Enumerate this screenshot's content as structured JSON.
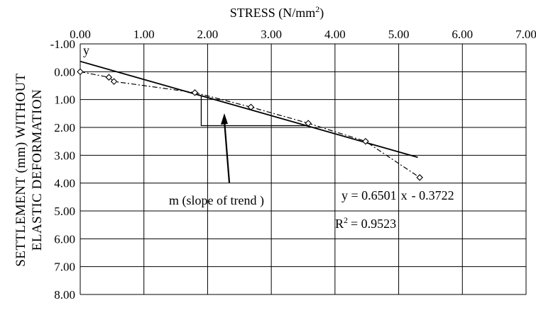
{
  "chart_data": {
    "type": "scatter",
    "title_prefix": "STRESS (N/mm",
    "title_sup": "2",
    "title_suffix": ")",
    "ylabel_line1": "SETTLEMENT (mm) WITHOUT",
    "ylabel_line2": "ELASTIC DEFORMATION",
    "y_axis_marker": "y",
    "x_ticks": [
      "0.00",
      "1.00",
      "2.00",
      "3.00",
      "4.00",
      "5.00",
      "6.00",
      "7.00"
    ],
    "y_ticks": [
      "-1.00",
      "0.00",
      "1.00",
      "2.00",
      "3.00",
      "4.00",
      "5.00",
      "6.00",
      "7.00",
      "8.00"
    ],
    "xlim": [
      0,
      7
    ],
    "ylim": [
      -1,
      8
    ],
    "y_inverted": true,
    "x_axis_position": "top",
    "grid": true,
    "series": [
      {
        "values_x": [
          0.0,
          0.45,
          0.53,
          1.8,
          2.68,
          3.58,
          4.48,
          5.33
        ],
        "values_y": [
          0.0,
          0.2,
          0.35,
          0.75,
          1.27,
          1.85,
          2.5,
          3.8
        ],
        "style": "dash-dot",
        "marker": "diamond"
      }
    ],
    "trendline": {
      "slope": 0.6501,
      "intercept": -0.3722,
      "x_start": 0.0,
      "x_end": 5.3
    },
    "annotations": {
      "equation_prefix": "y = 0.6501",
      "equation_x": "x",
      "equation_suffix": "- 0.3722",
      "r2_label": "R",
      "r2_sup": "2",
      "r2_value": "= 0.9523",
      "slope_label": "m (slope of trend )"
    },
    "slope_triangle": {
      "x1": 1.9,
      "x2": 3.55
    }
  },
  "colors": {
    "axis": "#000000",
    "grid": "#000000",
    "background": "#ffffff"
  }
}
